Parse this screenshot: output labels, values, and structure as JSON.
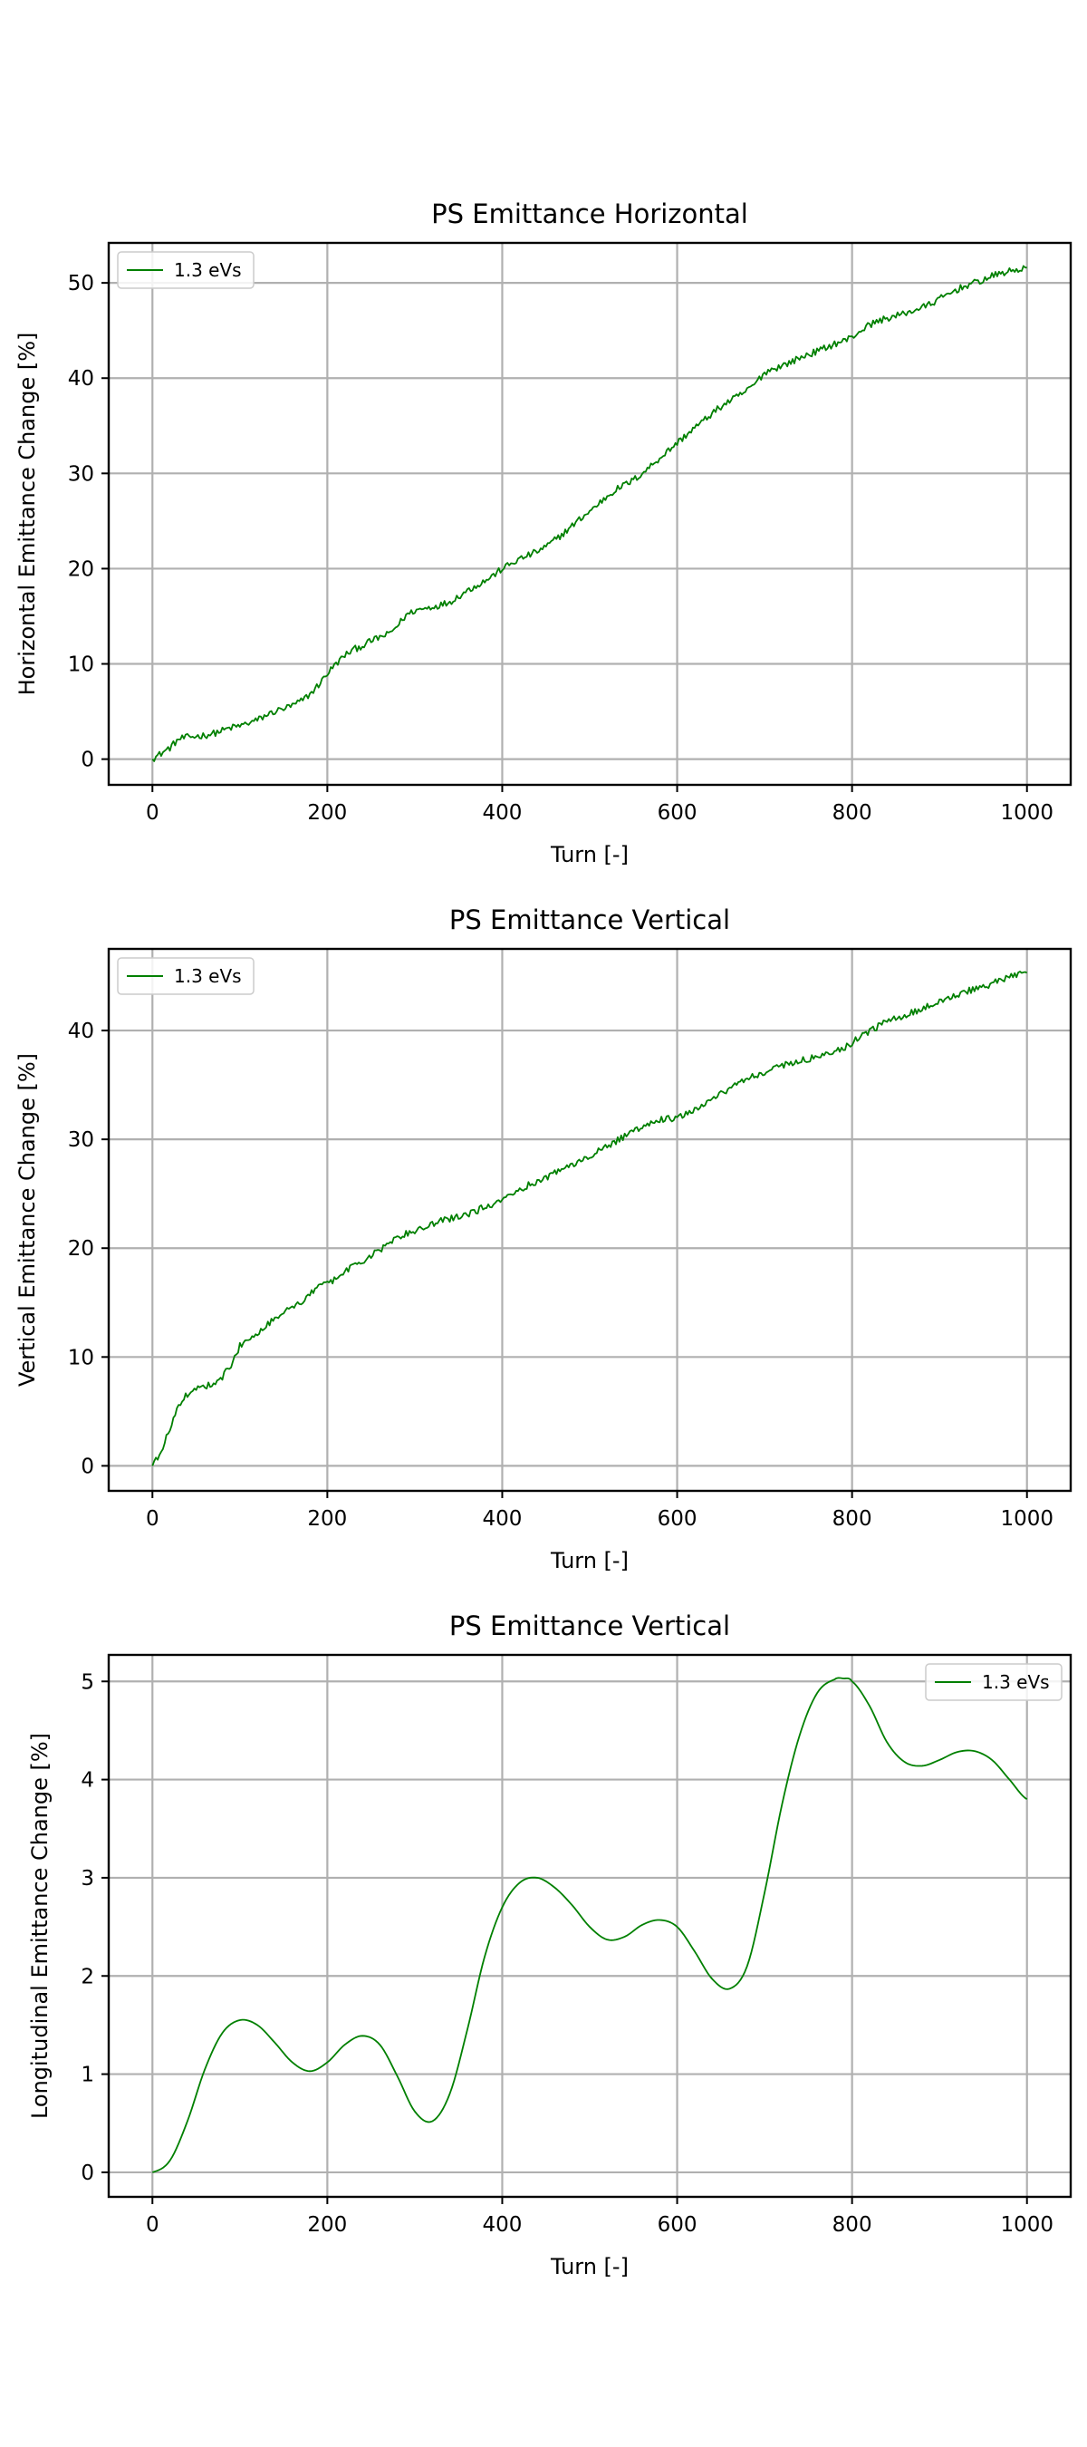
{
  "figure": {
    "background": "#ffffff",
    "line_color": "#008000",
    "grid_color": "#b0b0b0"
  },
  "chart_data": [
    {
      "type": "line",
      "title": "PS Emittance Horizontal",
      "xlabel": "Turn [-]",
      "ylabel": "Horizontal Emittance Change [%]",
      "xlim": [
        -50,
        1050
      ],
      "ylim": [
        -2.7,
        54.2
      ],
      "xticks": [
        0,
        200,
        400,
        600,
        800,
        1000
      ],
      "yticks": [
        0,
        10,
        20,
        30,
        40,
        50
      ],
      "grid": true,
      "legend": "top-left",
      "series": [
        {
          "name": "1.3 eVs",
          "color": "#008000",
          "noise": 0.35,
          "x": [
            0,
            10,
            20,
            30,
            40,
            50,
            60,
            70,
            80,
            90,
            100,
            110,
            120,
            130,
            140,
            150,
            160,
            170,
            180,
            190,
            200,
            210,
            220,
            230,
            240,
            250,
            260,
            270,
            280,
            290,
            300,
            310,
            320,
            330,
            340,
            350,
            360,
            370,
            380,
            390,
            400,
            410,
            420,
            430,
            440,
            450,
            460,
            470,
            480,
            490,
            500,
            510,
            520,
            530,
            540,
            550,
            560,
            570,
            580,
            590,
            600,
            610,
            620,
            630,
            640,
            650,
            660,
            670,
            680,
            690,
            700,
            710,
            720,
            730,
            740,
            750,
            760,
            770,
            780,
            790,
            800,
            810,
            820,
            830,
            840,
            850,
            860,
            870,
            880,
            890,
            900,
            910,
            920,
            930,
            940,
            950,
            960,
            970,
            980,
            990,
            1000
          ],
          "y": [
            0.0,
            0.6,
            1.2,
            2.1,
            2.3,
            2.4,
            2.5,
            2.7,
            3.0,
            3.3,
            3.5,
            3.8,
            4.1,
            4.6,
            5.0,
            5.3,
            5.6,
            6.1,
            6.8,
            7.8,
            9.0,
            10.0,
            10.9,
            11.5,
            11.9,
            12.4,
            12.8,
            13.1,
            14.0,
            15.1,
            15.6,
            15.8,
            16.0,
            16.2,
            16.5,
            17.1,
            17.7,
            18.2,
            18.7,
            19.3,
            20.0,
            20.5,
            21.0,
            21.4,
            21.8,
            22.3,
            23.0,
            23.7,
            24.5,
            25.3,
            26.0,
            26.8,
            27.6,
            28.3,
            28.8,
            29.3,
            30.0,
            30.8,
            31.6,
            32.4,
            33.2,
            34.0,
            34.8,
            35.5,
            36.3,
            37.0,
            37.6,
            38.1,
            38.7,
            39.5,
            40.6,
            41.0,
            41.3,
            41.7,
            42.1,
            42.5,
            42.8,
            43.2,
            43.6,
            43.9,
            44.3,
            45.0,
            45.6,
            46.0,
            46.3,
            46.5,
            46.8,
            47.1,
            47.4,
            47.8,
            48.3,
            48.8,
            49.3,
            49.7,
            50.0,
            50.3,
            50.7,
            51.0,
            51.2,
            51.4,
            51.6
          ]
        }
      ]
    },
    {
      "type": "line",
      "title": "PS Emittance Vertical",
      "xlabel": "Turn [-]",
      "ylabel": "Vertical Emittance Change [%]",
      "xlim": [
        -50,
        1050
      ],
      "ylim": [
        -2.3,
        47.5
      ],
      "xticks": [
        0,
        200,
        400,
        600,
        800,
        1000
      ],
      "yticks": [
        0,
        10,
        20,
        30,
        40
      ],
      "grid": true,
      "legend": "top-left",
      "series": [
        {
          "name": "1.3 eVs",
          "color": "#008000",
          "noise": 0.3,
          "x": [
            0,
            10,
            20,
            30,
            40,
            50,
            60,
            70,
            80,
            90,
            100,
            110,
            120,
            130,
            140,
            150,
            160,
            170,
            180,
            190,
            200,
            210,
            220,
            230,
            240,
            250,
            260,
            270,
            280,
            290,
            300,
            310,
            320,
            330,
            340,
            350,
            360,
            370,
            380,
            390,
            400,
            410,
            420,
            430,
            440,
            450,
            460,
            470,
            480,
            490,
            500,
            510,
            520,
            530,
            540,
            550,
            560,
            570,
            580,
            590,
            600,
            610,
            620,
            630,
            640,
            650,
            660,
            670,
            680,
            690,
            700,
            710,
            720,
            730,
            740,
            750,
            760,
            770,
            780,
            790,
            800,
            810,
            820,
            830,
            840,
            850,
            860,
            870,
            880,
            890,
            900,
            910,
            920,
            930,
            940,
            950,
            960,
            970,
            980,
            990,
            1000
          ],
          "y": [
            0.0,
            1.2,
            3.5,
            5.5,
            6.6,
            7.1,
            7.3,
            7.6,
            8.2,
            9.3,
            11.0,
            11.8,
            12.2,
            12.9,
            13.6,
            14.2,
            14.5,
            15.0,
            15.8,
            16.4,
            16.8,
            17.2,
            17.8,
            18.4,
            18.8,
            19.3,
            19.8,
            20.4,
            21.0,
            21.3,
            21.6,
            21.9,
            22.2,
            22.5,
            22.7,
            22.9,
            23.1,
            23.4,
            23.8,
            24.1,
            24.5,
            25.0,
            25.4,
            25.8,
            26.1,
            26.5,
            26.9,
            27.3,
            27.7,
            28.1,
            28.5,
            28.9,
            29.3,
            29.8,
            30.3,
            30.7,
            31.2,
            31.6,
            31.8,
            31.9,
            32.0,
            32.3,
            32.7,
            33.1,
            33.6,
            34.2,
            34.7,
            35.1,
            35.5,
            35.9,
            36.2,
            36.5,
            36.8,
            37.0,
            37.2,
            37.4,
            37.6,
            37.8,
            38.1,
            38.4,
            38.9,
            39.4,
            39.9,
            40.4,
            40.8,
            41.1,
            41.4,
            41.7,
            42.0,
            42.3,
            42.7,
            43.0,
            43.3,
            43.6,
            43.8,
            44.0,
            44.3,
            44.6,
            44.9,
            45.1,
            45.3
          ]
        }
      ]
    },
    {
      "type": "line",
      "title": "PS Emittance Vertical",
      "xlabel": "Turn [-]",
      "ylabel": "Longitudinal Emittance Change [%]",
      "xlim": [
        -50,
        1050
      ],
      "ylim": [
        -0.25,
        5.27
      ],
      "xticks": [
        0,
        200,
        400,
        600,
        800,
        1000
      ],
      "yticks": [
        0,
        1,
        2,
        3,
        4,
        5
      ],
      "grid": true,
      "legend": "top-right",
      "series": [
        {
          "name": "1.3 eVs",
          "color": "#008000",
          "noise": 0,
          "x": [
            0,
            20,
            40,
            60,
            80,
            100,
            120,
            140,
            160,
            180,
            200,
            220,
            240,
            260,
            280,
            300,
            320,
            340,
            360,
            380,
            400,
            420,
            440,
            460,
            480,
            500,
            520,
            540,
            560,
            580,
            600,
            620,
            640,
            660,
            680,
            700,
            720,
            740,
            760,
            780,
            790,
            800,
            820,
            840,
            860,
            880,
            900,
            920,
            940,
            960,
            980,
            1000
          ],
          "y": [
            0.0,
            0.12,
            0.52,
            1.05,
            1.42,
            1.55,
            1.5,
            1.32,
            1.12,
            1.03,
            1.12,
            1.3,
            1.39,
            1.3,
            0.98,
            0.62,
            0.52,
            0.8,
            1.45,
            2.2,
            2.7,
            2.95,
            3.0,
            2.9,
            2.72,
            2.5,
            2.37,
            2.4,
            2.52,
            2.57,
            2.5,
            2.25,
            1.97,
            1.87,
            2.1,
            2.85,
            3.75,
            4.45,
            4.88,
            5.02,
            5.03,
            5.0,
            4.75,
            4.38,
            4.18,
            4.14,
            4.2,
            4.28,
            4.29,
            4.2,
            4.0,
            3.8
          ]
        }
      ]
    }
  ]
}
